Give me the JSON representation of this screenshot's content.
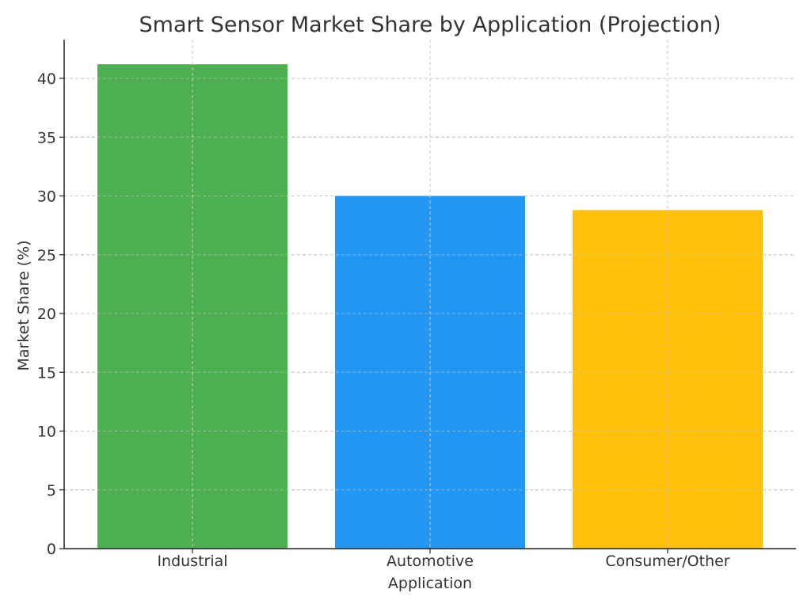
{
  "chart_data": {
    "type": "bar",
    "title": "Smart Sensor Market Share by Application (Projection)",
    "xlabel": "Application",
    "ylabel": "Market Share (%)",
    "categories": [
      "Industrial",
      "Automotive",
      "Consumer/Other"
    ],
    "values": [
      41.2,
      30.0,
      28.8
    ],
    "colors": [
      "#4caf50",
      "#2196f3",
      "#ffc107"
    ],
    "ylim": [
      0,
      43.3
    ],
    "yticks": [
      0,
      5,
      10,
      15,
      20,
      25,
      30,
      35,
      40
    ],
    "grid": true,
    "legend": "none"
  }
}
